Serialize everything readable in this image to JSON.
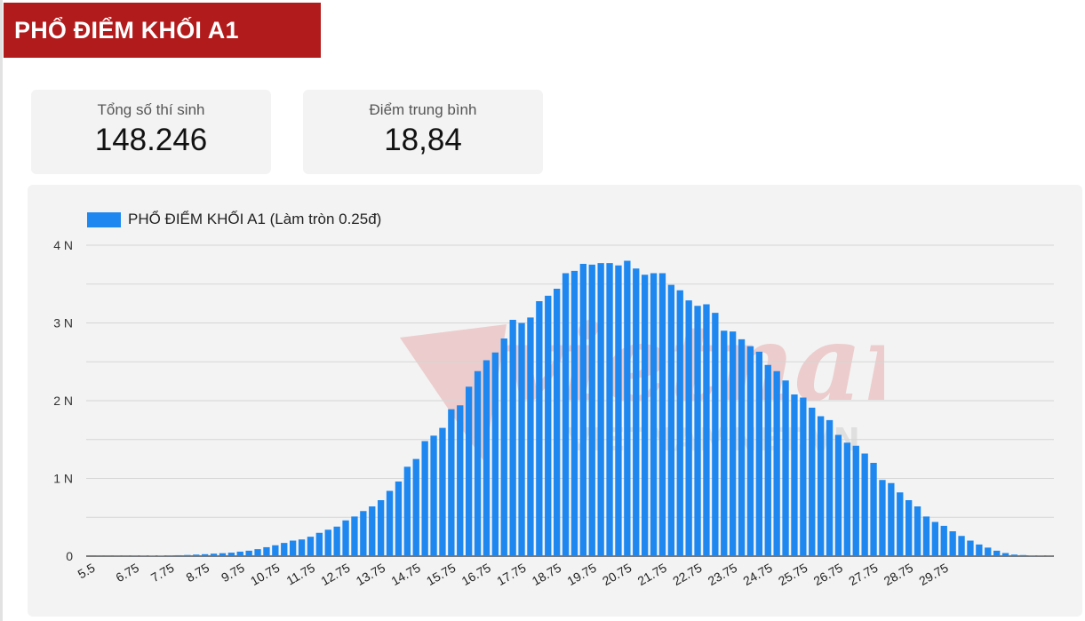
{
  "header": {
    "title": "PHỔ ĐIỂM KHỐI A1"
  },
  "stats": {
    "total_label": "Tổng số thí sinh",
    "total_value": "148.246",
    "avg_label": "Điểm trung bình",
    "avg_value": "18,84"
  },
  "watermark": {
    "main": "vietnamnet",
    "sub": "VIETNAMNET.VN"
  },
  "colors": {
    "title_bg": "#b21b1c",
    "bar": "#1e88f0",
    "panel_bg": "#f3f3f3",
    "grid": "#d6d6d6"
  },
  "chart_data": {
    "type": "bar",
    "legend": "PHỔ ĐIỂM KHỐI A1 (Làm tròn 0.25đ)",
    "legend_position": "top-left",
    "grid": true,
    "x_start": 5.5,
    "x_step": 0.25,
    "x_tick_labels": [
      "5.5",
      "6.75",
      "7.75",
      "8.75",
      "9.75",
      "10.75",
      "11.75",
      "12.75",
      "13.75",
      "14.75",
      "15.75",
      "16.75",
      "17.75",
      "18.75",
      "19.75",
      "20.75",
      "21.75",
      "22.75",
      "23.75",
      "24.75",
      "25.75",
      "26.75",
      "27.75",
      "28.75",
      "29.75"
    ],
    "y_ticks": [
      {
        "value": 0,
        "label": "0"
      },
      {
        "value": 1000,
        "label": "1 N"
      },
      {
        "value": 2000,
        "label": "2 N"
      },
      {
        "value": 3000,
        "label": "3 N"
      },
      {
        "value": 4000,
        "label": "4 N"
      }
    ],
    "ylim": [
      0,
      4000
    ],
    "values": [
      0,
      1,
      1,
      2,
      2,
      3,
      4,
      5,
      6,
      9,
      12,
      15,
      20,
      25,
      32,
      38,
      45,
      58,
      70,
      90,
      115,
      140,
      170,
      200,
      215,
      250,
      300,
      340,
      380,
      460,
      510,
      580,
      640,
      720,
      840,
      960,
      1150,
      1250,
      1480,
      1550,
      1650,
      1890,
      1940,
      2180,
      2380,
      2520,
      2620,
      2800,
      3040,
      3000,
      3070,
      3280,
      3350,
      3440,
      3640,
      3670,
      3760,
      3750,
      3770,
      3770,
      3740,
      3800,
      3700,
      3620,
      3640,
      3640,
      3490,
      3420,
      3290,
      3220,
      3240,
      3130,
      2900,
      2890,
      2790,
      2700,
      2630,
      2460,
      2380,
      2260,
      2080,
      2040,
      1910,
      1800,
      1750,
      1560,
      1460,
      1420,
      1320,
      1200,
      980,
      940,
      820,
      720,
      640,
      510,
      440,
      390,
      320,
      260,
      200,
      150,
      110,
      70,
      40,
      20,
      14,
      8,
      3,
      2
    ]
  }
}
